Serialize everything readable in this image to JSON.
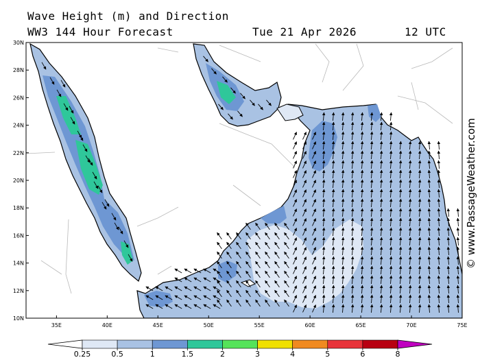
{
  "header": {
    "line1": "Wave Height (m) and Direction",
    "line2": "WW3 144 Hour Forecast",
    "date": "Tue 21 Apr 2026",
    "time": "12 UTC"
  },
  "credit": "© www.PassageWeather.com",
  "axes": {
    "lat_labels": [
      "30N",
      "28N",
      "26N",
      "24N",
      "22N",
      "20N",
      "18N",
      "16N",
      "14N",
      "12N",
      "10N"
    ],
    "lon_labels": [
      "35E",
      "40E",
      "45E",
      "50E",
      "55E",
      "60E",
      "65E",
      "70E",
      "75E"
    ],
    "lon_range": [
      32,
      75
    ],
    "lat_range": [
      10,
      30
    ]
  },
  "colorbar": {
    "labels": [
      "0.25",
      "0.5",
      "1",
      "1.5",
      "2",
      "3",
      "4",
      "5",
      "6",
      "8"
    ],
    "colors": [
      "#ffffff",
      "#dfe8f5",
      "#a9c2e3",
      "#6e97d3",
      "#2fc79a",
      "#55e35a",
      "#f0e000",
      "#f08a20",
      "#e8333a",
      "#b80012",
      "#c000c0"
    ]
  },
  "colors": {
    "land": "#ffffff",
    "sea_low": "#dfe8f5",
    "sea_mid": "#a9c2e3",
    "sea_high": "#6e97d3",
    "sea_peak": "#2fc79a",
    "border": "#b8b8b8"
  }
}
